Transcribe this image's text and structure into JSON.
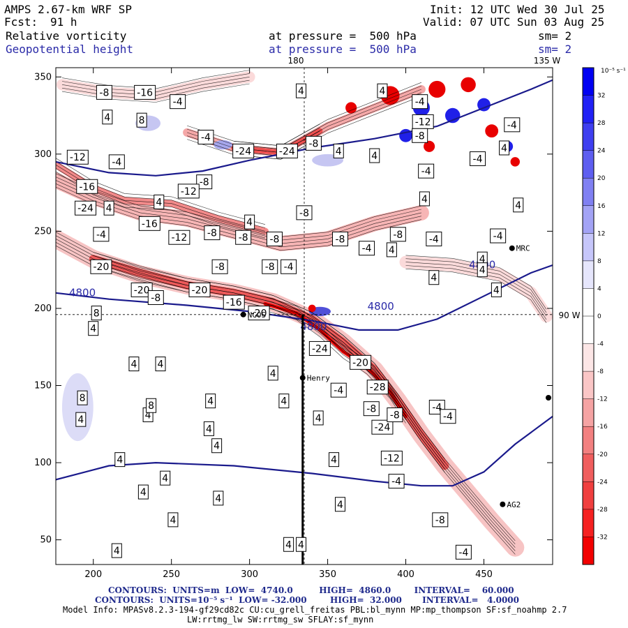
{
  "header": {
    "model": "AMPS 2.67-km WRF SP",
    "fcst_label": "Fcst:",
    "fcst_value": "91 h",
    "init": "Init: 12 UTC Wed 30 Jul 25",
    "valid": "Valid: 07 UTC Sun 03 Aug 25",
    "field1": "Relative vorticity",
    "field2": "Geopotential height",
    "pressure1": "at pressure =  500 hPa",
    "pressure2": "at pressure =  500 hPa",
    "sm1": "sm= 2",
    "sm2": "sm= 2"
  },
  "map_labels": {
    "lon_180": "180",
    "lon_135w": "135 W",
    "lon_90w": "90 W"
  },
  "stations": [
    {
      "name": "NCOS",
      "x": 296,
      "y": 196
    },
    {
      "name": "Henry",
      "x": 334,
      "y": 155
    },
    {
      "name": "MRC",
      "x": 468,
      "y": 239
    },
    {
      "name": "AG2",
      "x": 462,
      "y": 73
    }
  ],
  "footer": {
    "contours_height": "CONTOURS:  UNITS=m  LOW=  4740.0         HIGH=  4860.0        INTERVAL=    60.000",
    "contours_vort": "CONTOURS:  UNITS=10⁻⁵ s⁻¹  LOW= -32.000        HIGH=  32.000       INTERVAL=   4.0000",
    "model_info": "Model Info: MPASv8.2.3-194-gf29cd82c CU:cu_grell_freitas PBL:bl_mynn MP:mp_thompson SF:sf_noahmp 2.7",
    "model_info2": "LW:rrtmg_lw SW:rrtmg_sw SFLAY:sf_mynn"
  },
  "colorbar": {
    "unit_label": "10⁻⁵ s⁻¹",
    "ticks": [
      "32",
      "28",
      "24",
      "20",
      "16",
      "12",
      "8",
      "4",
      "0",
      "-4",
      "-8",
      "-12",
      "-16",
      "-20",
      "-24",
      "-28",
      "-32"
    ],
    "colors": [
      "#0000f2",
      "#2121f5",
      "#3f3ff0",
      "#5e5ef0",
      "#8080f2",
      "#a3a3f5",
      "#c6c6fa",
      "#e6e6fc",
      "#ffffff",
      "#ffffff",
      "#fce6e6",
      "#fac6c6",
      "#f5a3a3",
      "#f28080",
      "#f05e5e",
      "#f03f3f",
      "#f52121",
      "#f20000"
    ]
  },
  "chart_data": {
    "type": "contour",
    "xlabel": "",
    "ylabel": "",
    "xlim": [
      176,
      494
    ],
    "ylim": [
      34,
      356
    ],
    "xticks": [
      200,
      250,
      300,
      350,
      400,
      450
    ],
    "yticks": [
      50,
      100,
      150,
      200,
      250,
      300,
      350
    ],
    "height_contours": [
      {
        "label": "4800",
        "points": [
          [
            176,
            210
          ],
          [
            210,
            206
          ],
          [
            260,
            202
          ],
          [
            300,
            198
          ],
          [
            340,
            192
          ],
          [
            370,
            186
          ],
          [
            395,
            186
          ],
          [
            420,
            193
          ],
          [
            450,
            208
          ],
          [
            480,
            223
          ],
          [
            494,
            228
          ]
        ]
      },
      {
        "label": "4800",
        "points": [
          [
            176,
            295
          ],
          [
            210,
            288
          ],
          [
            240,
            286
          ],
          [
            270,
            289
          ],
          [
            300,
            296
          ],
          [
            340,
            304
          ],
          [
            380,
            310
          ],
          [
            420,
            318
          ],
          [
            450,
            330
          ],
          [
            480,
            342
          ],
          [
            494,
            348
          ]
        ]
      },
      {
        "label": "",
        "points": [
          [
            176,
            89
          ],
          [
            210,
            98
          ],
          [
            240,
            100
          ],
          [
            290,
            98
          ],
          [
            340,
            93
          ],
          [
            380,
            88
          ],
          [
            410,
            85
          ],
          [
            430,
            85
          ],
          [
            450,
            94
          ],
          [
            470,
            112
          ],
          [
            494,
            130
          ]
        ]
      }
    ],
    "height_labels": [
      {
        "text": "4800",
        "x": 193,
        "y": 210
      },
      {
        "text": "4800",
        "x": 384,
        "y": 201
      },
      {
        "text": "4800",
        "x": 341,
        "y": 188
      },
      {
        "text": "4800",
        "x": 449,
        "y": 228
      }
    ],
    "vorticity_labels": [
      {
        "v": "-8",
        "x": 207,
        "y": 340
      },
      {
        "v": "-16",
        "x": 233,
        "y": 340
      },
      {
        "v": "-4",
        "x": 254,
        "y": 334
      },
      {
        "v": "4",
        "x": 333,
        "y": 341
      },
      {
        "v": "4",
        "x": 385,
        "y": 341
      },
      {
        "v": "-4",
        "x": 409,
        "y": 334
      },
      {
        "v": "4",
        "x": 209,
        "y": 324
      },
      {
        "v": "8",
        "x": 231,
        "y": 322
      },
      {
        "v": "-4",
        "x": 272,
        "y": 311
      },
      {
        "v": "-12",
        "x": 411,
        "y": 321
      },
      {
        "v": "-8",
        "x": 409,
        "y": 312
      },
      {
        "v": "-24",
        "x": 296,
        "y": 302
      },
      {
        "v": "-24",
        "x": 324,
        "y": 302
      },
      {
        "v": "-8",
        "x": 341,
        "y": 307
      },
      {
        "v": "4",
        "x": 357,
        "y": 302
      },
      {
        "v": "-12",
        "x": 190,
        "y": 298
      },
      {
        "v": "-4",
        "x": 215,
        "y": 295
      },
      {
        "v": "4",
        "x": 380,
        "y": 299
      },
      {
        "v": "-4",
        "x": 413,
        "y": 289
      },
      {
        "v": "-16",
        "x": 196,
        "y": 279
      },
      {
        "v": "-8",
        "x": 271,
        "y": 282
      },
      {
        "v": "-12",
        "x": 261,
        "y": 276
      },
      {
        "v": "4",
        "x": 242,
        "y": 269
      },
      {
        "v": "-24",
        "x": 195,
        "y": 265
      },
      {
        "v": "4",
        "x": 210,
        "y": 265
      },
      {
        "v": "4",
        "x": 412,
        "y": 271
      },
      {
        "v": "4",
        "x": 472,
        "y": 267
      },
      {
        "v": "-8",
        "x": 335,
        "y": 262
      },
      {
        "v": "4",
        "x": 300,
        "y": 256
      },
      {
        "v": "-16",
        "x": 236,
        "y": 255
      },
      {
        "v": "-4",
        "x": 205,
        "y": 248
      },
      {
        "v": "-12",
        "x": 255,
        "y": 246
      },
      {
        "v": "-8",
        "x": 276,
        "y": 249
      },
      {
        "v": "-8",
        "x": 296,
        "y": 246
      },
      {
        "v": "-8",
        "x": 316,
        "y": 245
      },
      {
        "v": "-8",
        "x": 358,
        "y": 245
      },
      {
        "v": "-4",
        "x": 375,
        "y": 239
      },
      {
        "v": "-8",
        "x": 395,
        "y": 248
      },
      {
        "v": "-4",
        "x": 418,
        "y": 245
      },
      {
        "v": "-4",
        "x": 459,
        "y": 247
      },
      {
        "v": "4",
        "x": 391,
        "y": 238
      },
      {
        "v": "4",
        "x": 449,
        "y": 232
      },
      {
        "v": "-20",
        "x": 205,
        "y": 227
      },
      {
        "v": "-8",
        "x": 281,
        "y": 227
      },
      {
        "v": "-8",
        "x": 313,
        "y": 227
      },
      {
        "v": "-4",
        "x": 325,
        "y": 227
      },
      {
        "v": "4",
        "x": 449,
        "y": 225
      },
      {
        "v": "-20",
        "x": 231,
        "y": 212
      },
      {
        "v": "-20",
        "x": 268,
        "y": 212
      },
      {
        "v": "-8",
        "x": 240,
        "y": 207
      },
      {
        "v": "-16",
        "x": 290,
        "y": 204
      },
      {
        "v": "4",
        "x": 458,
        "y": 212
      },
      {
        "v": "4",
        "x": 418,
        "y": 220
      },
      {
        "v": "8",
        "x": 202,
        "y": 197
      },
      {
        "v": "-20",
        "x": 306,
        "y": 197
      },
      {
        "v": "4",
        "x": 200,
        "y": 187
      },
      {
        "v": "-24",
        "x": 345,
        "y": 174
      },
      {
        "v": "-20",
        "x": 371,
        "y": 165
      },
      {
        "v": "4",
        "x": 226,
        "y": 164
      },
      {
        "v": "4",
        "x": 243,
        "y": 164
      },
      {
        "v": "-4",
        "x": 357,
        "y": 147
      },
      {
        "v": "-28",
        "x": 382,
        "y": 149
      },
      {
        "v": "4",
        "x": 315,
        "y": 158
      },
      {
        "v": "8",
        "x": 193,
        "y": 142
      },
      {
        "v": "4",
        "x": 275,
        "y": 140
      },
      {
        "v": "4",
        "x": 322,
        "y": 140
      },
      {
        "v": "-8",
        "x": 378,
        "y": 135
      },
      {
        "v": "4",
        "x": 235,
        "y": 131
      },
      {
        "v": "8",
        "x": 237,
        "y": 137
      },
      {
        "v": "-24",
        "x": 385,
        "y": 123
      },
      {
        "v": "-8",
        "x": 393,
        "y": 131
      },
      {
        "v": "4",
        "x": 344,
        "y": 129
      },
      {
        "v": "-4",
        "x": 420,
        "y": 136
      },
      {
        "v": "-4",
        "x": 427,
        "y": 130
      },
      {
        "v": "4",
        "x": 192,
        "y": 128
      },
      {
        "v": "4",
        "x": 274,
        "y": 122
      },
      {
        "v": "4",
        "x": 279,
        "y": 111
      },
      {
        "v": "-12",
        "x": 391,
        "y": 103
      },
      {
        "v": "4",
        "x": 354,
        "y": 102
      },
      {
        "v": "4",
        "x": 217,
        "y": 102
      },
      {
        "v": "4",
        "x": 246,
        "y": 90
      },
      {
        "v": "-4",
        "x": 394,
        "y": 88
      },
      {
        "v": "4",
        "x": 232,
        "y": 81
      },
      {
        "v": "4",
        "x": 280,
        "y": 77
      },
      {
        "v": "4",
        "x": 358,
        "y": 73
      },
      {
        "v": "-8",
        "x": 422,
        "y": 63
      },
      {
        "v": "4",
        "x": 251,
        "y": 63
      },
      {
        "v": "4",
        "x": 325,
        "y": 47
      },
      {
        "v": "4",
        "x": 333,
        "y": 47
      },
      {
        "v": "4",
        "x": 215,
        "y": 43
      },
      {
        "v": "-4",
        "x": 437,
        "y": 42
      },
      {
        "v": "4",
        "x": 463,
        "y": 304
      },
      {
        "v": "-4",
        "x": 446,
        "y": 297
      },
      {
        "v": "-4",
        "x": 468,
        "y": 319
      }
    ],
    "neg_bands": [
      {
        "width": 22,
        "color": "#f7b5b5",
        "points": [
          [
            176,
            283
          ],
          [
            200,
            272
          ],
          [
            230,
            262
          ],
          [
            260,
            258
          ],
          [
            290,
            250
          ],
          [
            320,
            242
          ],
          [
            350,
            245
          ],
          [
            380,
            255
          ],
          [
            410,
            262
          ]
        ]
      },
      {
        "width": 26,
        "color": "#f7c4c4",
        "points": [
          [
            176,
            245
          ],
          [
            200,
            232
          ],
          [
            230,
            222
          ],
          [
            260,
            215
          ],
          [
            290,
            210
          ],
          [
            315,
            204
          ],
          [
            340,
            193
          ],
          [
            360,
            178
          ],
          [
            380,
            160
          ],
          [
            395,
            140
          ],
          [
            410,
            118
          ],
          [
            425,
            98
          ],
          [
            440,
            80
          ],
          [
            455,
            62
          ],
          [
            470,
            45
          ]
        ]
      },
      {
        "width": 12,
        "color": "#ee5a5a",
        "points": [
          [
            200,
            232
          ],
          [
            230,
            223
          ],
          [
            260,
            215
          ],
          [
            290,
            210
          ],
          [
            315,
            204
          ],
          [
            340,
            193
          ],
          [
            360,
            178
          ],
          [
            380,
            160
          ],
          [
            395,
            140
          ],
          [
            410,
            118
          ],
          [
            425,
            98
          ]
        ]
      },
      {
        "width": 5,
        "color": "#e80000",
        "points": [
          [
            310,
            203
          ],
          [
            330,
            197
          ],
          [
            345,
            186
          ],
          [
            360,
            172
          ],
          [
            375,
            162
          ],
          [
            390,
            146
          ],
          [
            400,
            130
          ]
        ]
      },
      {
        "width": 12,
        "color": "#f5a8a8",
        "points": [
          [
            260,
            314
          ],
          [
            290,
            304
          ],
          [
            320,
            301
          ],
          [
            350,
            318
          ],
          [
            380,
            330
          ],
          [
            410,
            342
          ]
        ]
      },
      {
        "width": 10,
        "color": "#f28a8a",
        "points": [
          [
            176,
            293
          ],
          [
            200,
            278
          ],
          [
            220,
            270
          ],
          [
            250,
            268
          ],
          [
            280,
            258
          ],
          [
            310,
            250
          ]
        ]
      },
      {
        "width": 8,
        "color": "#ee5050",
        "points": [
          [
            290,
            304
          ],
          [
            320,
            301
          ],
          [
            345,
            315
          ]
        ]
      },
      {
        "width": 18,
        "color": "#fbdada",
        "points": [
          [
            400,
            230
          ],
          [
            430,
            228
          ],
          [
            460,
            222
          ],
          [
            480,
            210
          ],
          [
            490,
            195
          ]
        ]
      },
      {
        "width": 16,
        "color": "#fbdada",
        "points": [
          [
            180,
            345
          ],
          [
            210,
            340
          ],
          [
            240,
            338
          ],
          [
            270,
            345
          ],
          [
            300,
            350
          ]
        ]
      }
    ],
    "pos_patches": [
      {
        "cx": 190,
        "cy": 136,
        "rx": 10,
        "ry": 22,
        "color": "#dcdcf7"
      },
      {
        "cx": 283,
        "cy": 306,
        "rx": 6,
        "ry": 3,
        "color": "#a6a6ec"
      },
      {
        "cx": 345,
        "cy": 198,
        "rx": 7,
        "ry": 3,
        "color": "#5050d8"
      },
      {
        "cx": 235,
        "cy": 320,
        "rx": 8,
        "ry": 5,
        "color": "#c6c6f2"
      },
      {
        "cx": 350,
        "cy": 296,
        "rx": 10,
        "ry": 4,
        "color": "#c6c6f2"
      }
    ],
    "blobs": [
      {
        "cx": 390,
        "cy": 338,
        "r": 10,
        "color": "#e80000"
      },
      {
        "cx": 410,
        "cy": 330,
        "r": 9,
        "color": "#2020e8"
      },
      {
        "cx": 420,
        "cy": 342,
        "r": 9,
        "color": "#e80000"
      },
      {
        "cx": 430,
        "cy": 325,
        "r": 8,
        "color": "#2020e8"
      },
      {
        "cx": 440,
        "cy": 345,
        "r": 8,
        "color": "#e80000"
      },
      {
        "cx": 450,
        "cy": 332,
        "r": 7,
        "color": "#2020e8"
      },
      {
        "cx": 455,
        "cy": 315,
        "r": 7,
        "color": "#e80000"
      },
      {
        "cx": 465,
        "cy": 305,
        "r": 6,
        "color": "#2020e8"
      },
      {
        "cx": 400,
        "cy": 312,
        "r": 7,
        "color": "#2020e8"
      },
      {
        "cx": 415,
        "cy": 305,
        "r": 6,
        "color": "#e80000"
      },
      {
        "cx": 470,
        "cy": 295,
        "r": 5,
        "color": "#e80000"
      },
      {
        "cx": 365,
        "cy": 330,
        "r": 6,
        "color": "#e80000"
      },
      {
        "cx": 340,
        "cy": 200,
        "r": 4,
        "color": "#e80000"
      }
    ],
    "grid_lines": [
      {
        "orientation": "vertical",
        "x": 335
      },
      {
        "orientation": "horizontal",
        "y": 196
      }
    ],
    "transect": {
      "x": 334,
      "y0": 34,
      "y1": 196
    }
  }
}
